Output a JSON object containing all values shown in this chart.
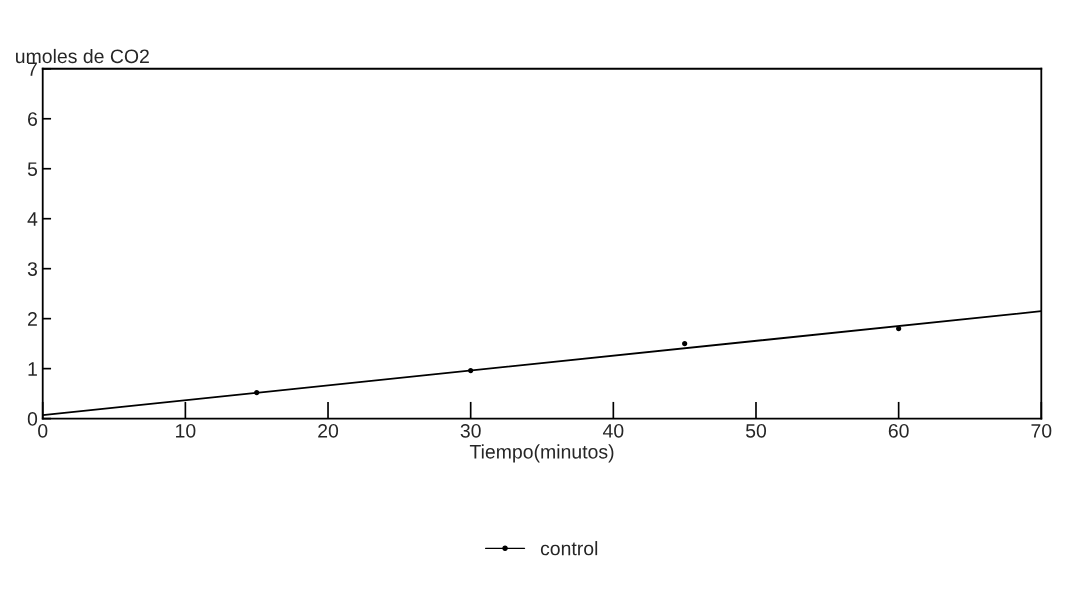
{
  "chart_data": {
    "type": "scatter",
    "xlabel": "Tiempo(minutos)",
    "ylabel": "umoles de CO2",
    "xlim": [
      0,
      70
    ],
    "xticks": [
      0,
      10,
      20,
      30,
      40,
      50,
      60,
      70
    ],
    "ylim": [
      0,
      7
    ],
    "yticks": [
      0,
      1,
      2,
      3,
      4,
      5,
      6,
      7
    ],
    "grid": false,
    "legend": "bottom",
    "series": [
      {
        "name": "control",
        "marker": "circle",
        "color": "#000000",
        "x": [
          15,
          30,
          45,
          60
        ],
        "values": [
          0.52,
          0.96,
          1.5,
          1.8
        ]
      },
      {
        "type": "line",
        "color": "#000000",
        "x": [
          0,
          70
        ],
        "values": [
          0.07,
          2.15
        ]
      }
    ]
  }
}
